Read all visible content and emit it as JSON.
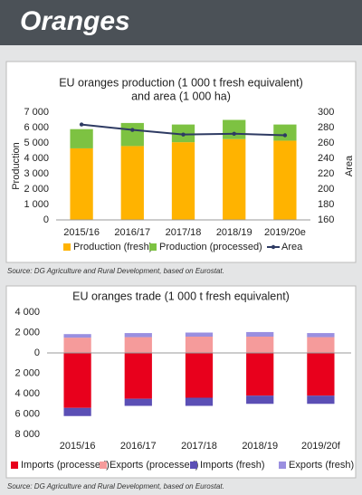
{
  "header": {
    "title": "Oranges"
  },
  "chart_data": [
    {
      "type": "bar",
      "stacked": true,
      "title": [
        "EU oranges production (1 000 t fresh equivalent)",
        "and area (1 000 ha)"
      ],
      "ylabel": "Production",
      "y2label": "Area",
      "categories": [
        "2015/16",
        "2016/17",
        "2017/18",
        "2018/19",
        "2019/20e"
      ],
      "series": [
        {
          "name": "Production (fresh)",
          "color": "#ffb300",
          "values": [
            4650,
            4800,
            5050,
            5250,
            5150
          ]
        },
        {
          "name": "Production (processed)",
          "color": "#7dc242",
          "values": [
            1250,
            1500,
            1150,
            1250,
            1050
          ]
        },
        {
          "name": "Area",
          "color": "#2e3b63",
          "type": "line",
          "axis": "y2",
          "values": [
            284,
            277,
            271,
            272,
            270
          ]
        }
      ],
      "ylim": [
        0,
        7000
      ],
      "yticks": [
        0,
        {
          "value": 1000,
          "label": "1 000"
        },
        {
          "value": 2000,
          "label": "2 000"
        },
        {
          "value": 3000,
          "label": "3 000"
        },
        {
          "value": 4000,
          "label": "4 000"
        },
        {
          "value": 5000,
          "label": "5 000"
        },
        {
          "value": 6000,
          "label": "6 000"
        },
        {
          "value": 7000,
          "label": "7 000"
        }
      ],
      "y2lim": [
        160,
        300
      ],
      "y2ticks": [
        160,
        180,
        200,
        220,
        240,
        260,
        280,
        300
      ],
      "grid": false,
      "legend": "bottom",
      "source": "Source: DG Agriculture and Rural Development, based on Eurostat."
    },
    {
      "type": "bar",
      "stacked": true,
      "title": [
        "EU oranges trade (1 000 t fresh equivalent)"
      ],
      "categories": [
        "2015/16",
        "2016/17",
        "2017/18",
        "2018/19",
        "2019/20f"
      ],
      "series": [
        {
          "name": "Imports (processed)",
          "color": "#e8001c",
          "values": [
            -5400,
            -4500,
            -4400,
            -4200,
            -4200
          ]
        },
        {
          "name": "Exports (processed)",
          "color": "#f59b9b",
          "values": [
            1500,
            1550,
            1600,
            1600,
            1550
          ]
        },
        {
          "name": "Imports (fresh)",
          "color": "#5b4fb5",
          "values": [
            -800,
            -700,
            -800,
            -800,
            -800
          ]
        },
        {
          "name": "Exports (fresh)",
          "color": "#9a8fe0",
          "values": [
            350,
            400,
            400,
            450,
            400
          ]
        }
      ],
      "ylim": [
        -8000,
        4000
      ],
      "yticks": [
        {
          "value": -8000,
          "label": "8 000"
        },
        {
          "value": -6000,
          "label": "6 000"
        },
        {
          "value": -4000,
          "label": "4 000"
        },
        {
          "value": -2000,
          "label": "2 000"
        },
        0,
        {
          "value": 2000,
          "label": "2 000"
        },
        {
          "value": 4000,
          "label": "4 000"
        }
      ],
      "grid": false,
      "legend": "bottom",
      "source": "Source: DG Agriculture and Rural Development, based on Eurostat."
    }
  ]
}
